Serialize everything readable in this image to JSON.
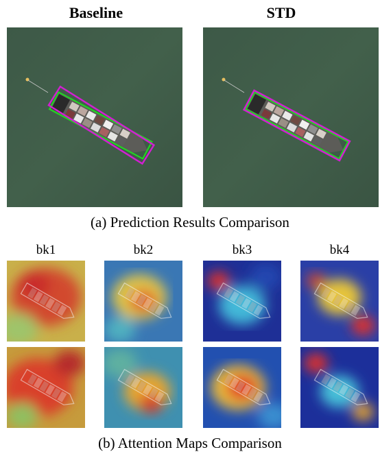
{
  "figure": {
    "top_titles": [
      "Baseline",
      "STD"
    ],
    "caption_a": "(a) Prediction Results Comparison",
    "block_labels": [
      "bk1",
      "bk2",
      "bk3",
      "bk4"
    ],
    "caption_b": "(b) Attention Maps Comparison"
  },
  "colors": {
    "sea": "#3f5a47",
    "box_gt": "#22d422",
    "box_pred": "#d21fd2"
  }
}
